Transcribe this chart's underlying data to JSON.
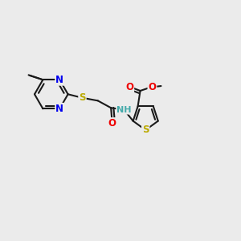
{
  "bg_color": "#ebebeb",
  "bond_color": "#1a1a1a",
  "bond_width": 1.5,
  "dbo": 0.055,
  "atom_colors": {
    "N": "#0000ee",
    "S": "#bbaa00",
    "O": "#ee0000",
    "H": "#44aaaa",
    "C": "#1a1a1a"
  },
  "font_size": 8.5
}
